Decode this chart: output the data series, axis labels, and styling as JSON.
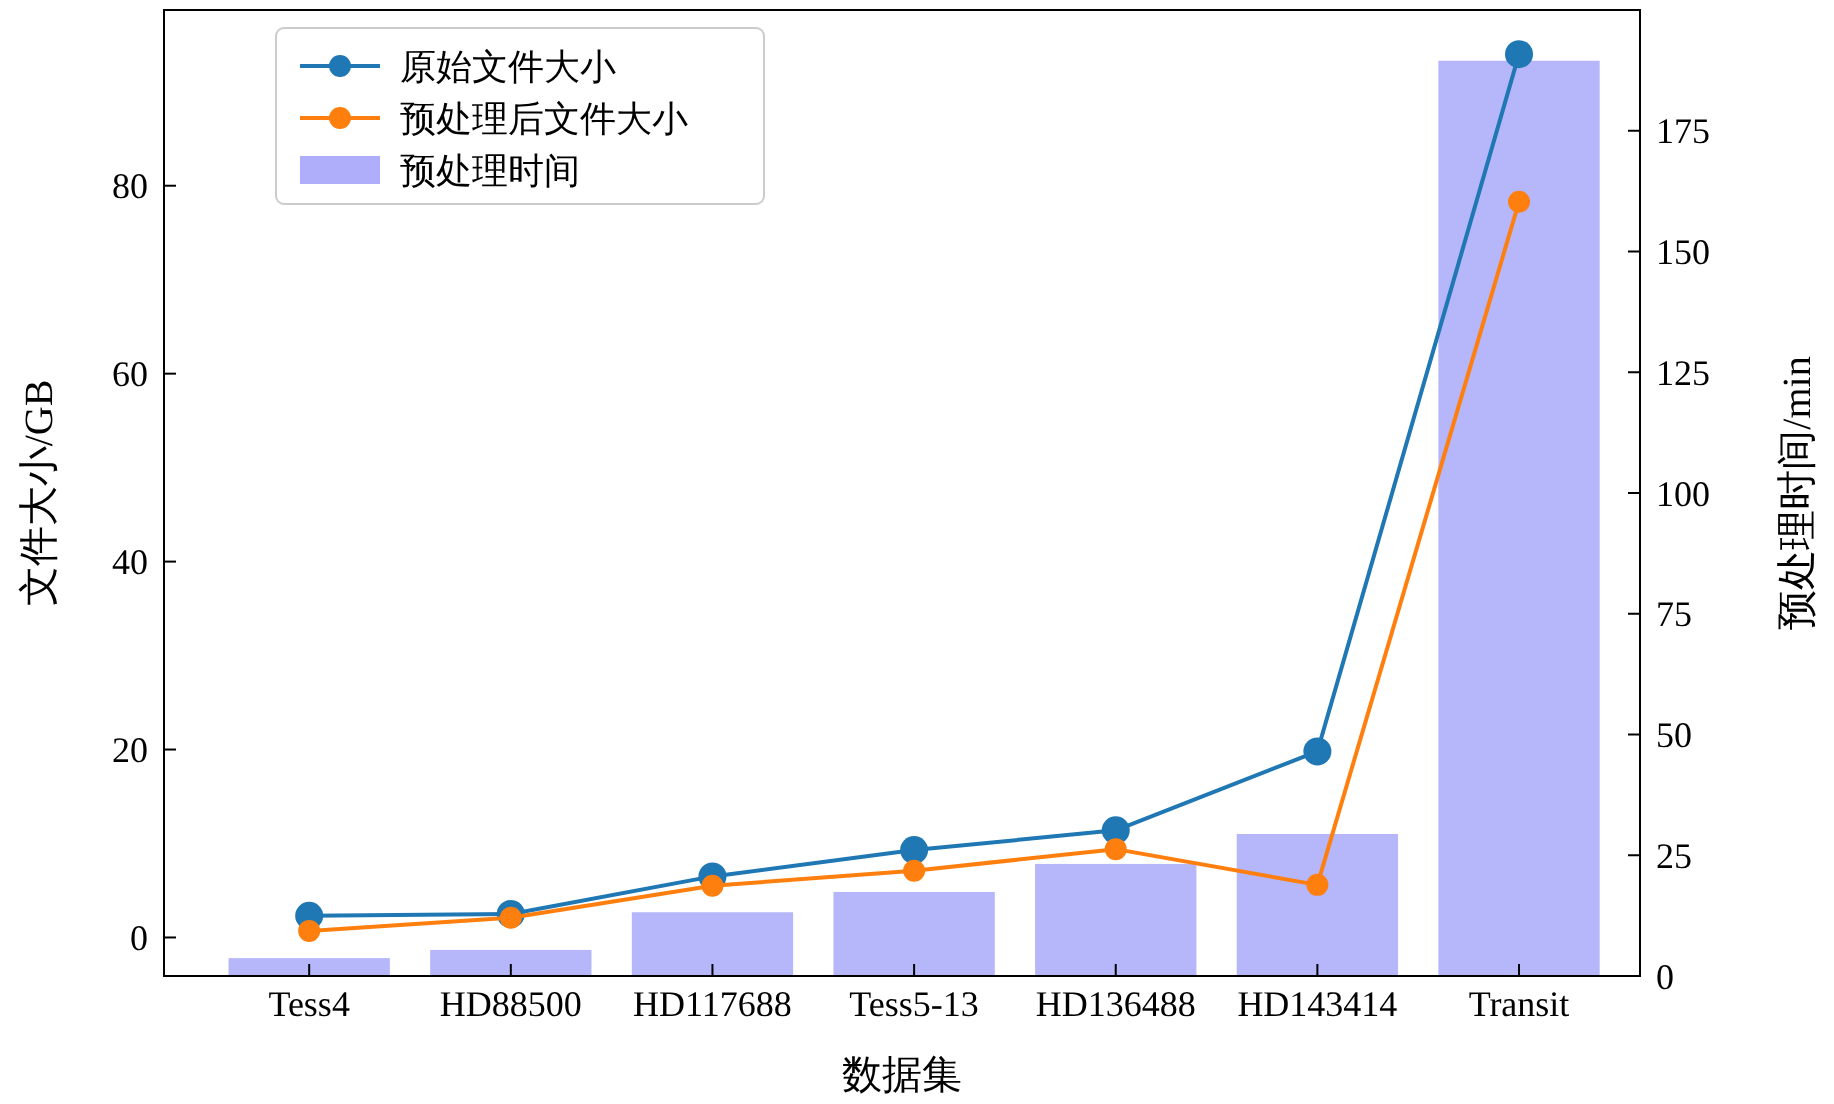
{
  "chart_data": {
    "type": "line",
    "xlabel": "数据集",
    "ylabel": "文件大小/GB",
    "y2label": "预处理时间/min",
    "categories": [
      "Tess4",
      "HD88500",
      "HD117688",
      "Tess5-13",
      "HD136488",
      "HD143414",
      "Transit"
    ],
    "series": [
      {
        "name": "原始文件大小",
        "color": "#1f77b4",
        "values": [
          2.3,
          2.5,
          6.5,
          9.3,
          11.4,
          19.8,
          94
        ]
      },
      {
        "name": "预处理后文件大小",
        "color": "#ff7f0e",
        "values": [
          0.7,
          2.1,
          5.5,
          7.1,
          9.4,
          5.6,
          78.3
        ]
      },
      {
        "name": "预处理时间",
        "type": "bar",
        "axis": "y2",
        "color": "#aeaefa",
        "values": [
          3.7,
          5.4,
          13.2,
          17.4,
          23.2,
          29.4,
          189.5
        ]
      }
    ],
    "ylim": [
      -4.1,
      98.7
    ],
    "yticks": [
      0,
      20,
      40,
      60,
      80
    ],
    "y2lim": [
      0,
      200
    ],
    "y2ticks": [
      0,
      25,
      50,
      75,
      100,
      125,
      150,
      175
    ],
    "marker": "circle",
    "legend": "top left",
    "grid": false
  }
}
